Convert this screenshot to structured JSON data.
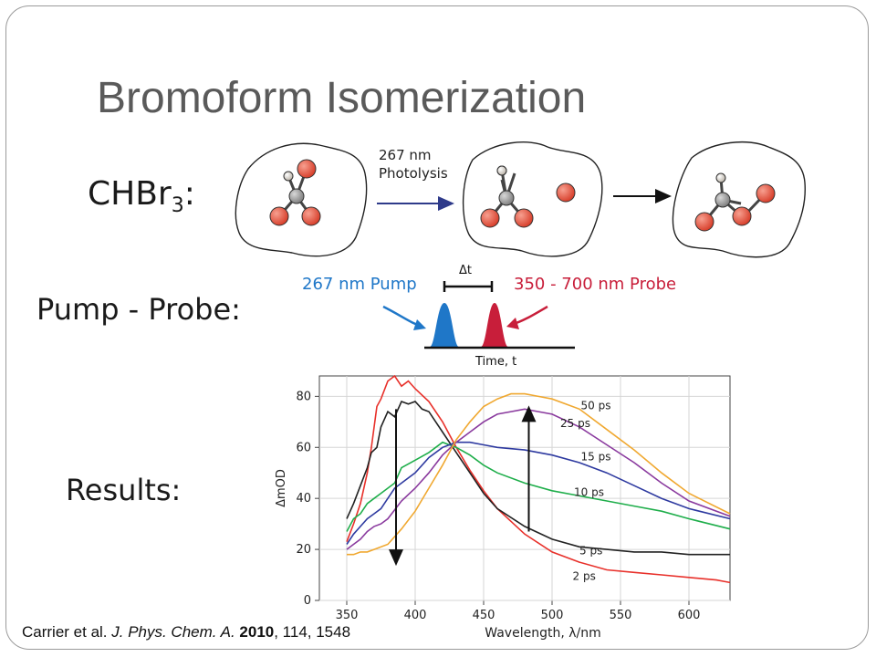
{
  "slide": {
    "title": "Bromoform Isomerization",
    "labels": {
      "chbr3_main": "CHBr",
      "chbr3_sub": "3",
      "chbr3_colon": ":",
      "pump_probe": "Pump - Probe:",
      "results": "Results:"
    },
    "photolysis": {
      "line1": "267 nm",
      "line2": "Photolysis"
    },
    "pump_probe": {
      "pump": "267 nm Pump",
      "probe": "350 - 700 nm Probe",
      "delta": "Δt",
      "axis": "Time, t"
    },
    "colors": {
      "bromine": "#e8503a",
      "carbon": "#9a9a9a",
      "hydrogen": "#d8d2c8",
      "pump": "#1f77c8",
      "probe": "#c81e3a",
      "arrow": "#2e3a8a"
    },
    "citation": {
      "authors": "Carrier et al. ",
      "journal": "J. Phys. Chem. A.",
      "year": "2010",
      "rest": ", 114, 1548"
    }
  },
  "chart_data": {
    "type": "line",
    "xlabel": "Wavelength, λ/nm",
    "ylabel": "ΔmOD",
    "xlim": [
      330,
      630
    ],
    "ylim": [
      0,
      88
    ],
    "xticks": [
      "350",
      "400",
      "450",
      "500",
      "550",
      "600"
    ],
    "yticks": [
      "0",
      "20",
      "40",
      "60",
      "80"
    ],
    "grid": true,
    "series": [
      {
        "name": "2 ps",
        "color": "#e8302a",
        "label_at": [
          515,
          8
        ],
        "x": [
          350,
          355,
          360,
          365,
          368,
          372,
          375,
          380,
          385,
          390,
          395,
          400,
          410,
          420,
          430,
          440,
          450,
          460,
          480,
          500,
          520,
          540,
          560,
          580,
          600,
          620,
          630
        ],
        "y": [
          23,
          30,
          38,
          50,
          60,
          76,
          79,
          86,
          88,
          84,
          86,
          83,
          78,
          70,
          60,
          51,
          43,
          36,
          26,
          19,
          15,
          12,
          11,
          10,
          9,
          8,
          7
        ]
      },
      {
        "name": "5 ps",
        "color": "#222222",
        "label_at": [
          520,
          18
        ],
        "x": [
          350,
          355,
          360,
          365,
          368,
          372,
          375,
          380,
          385,
          390,
          395,
          400,
          405,
          410,
          420,
          430,
          440,
          450,
          460,
          480,
          500,
          520,
          540,
          560,
          580,
          600,
          630
        ],
        "y": [
          32,
          38,
          45,
          52,
          58,
          60,
          68,
          74,
          72,
          78,
          77,
          78,
          75,
          74,
          66,
          58,
          50,
          42,
          36,
          29,
          24,
          21,
          20,
          19,
          19,
          18,
          18
        ]
      },
      {
        "name": "10 ps",
        "color": "#1fae4b",
        "label_at": [
          516,
          41
        ],
        "x": [
          350,
          355,
          360,
          365,
          370,
          375,
          380,
          385,
          390,
          400,
          410,
          420,
          430,
          440,
          450,
          460,
          480,
          500,
          520,
          540,
          560,
          580,
          600,
          630
        ],
        "y": [
          27,
          32,
          34,
          38,
          40,
          42,
          44,
          46,
          52,
          55,
          58,
          62,
          60,
          57,
          53,
          50,
          46,
          43,
          41,
          39,
          37,
          35,
          32,
          28
        ]
      },
      {
        "name": "15 ps",
        "color": "#2e3aa0",
        "label_at": [
          521,
          55
        ],
        "x": [
          350,
          355,
          360,
          365,
          370,
          375,
          380,
          385,
          390,
          400,
          410,
          420,
          430,
          440,
          450,
          460,
          480,
          500,
          520,
          540,
          560,
          580,
          600,
          630
        ],
        "y": [
          22,
          26,
          29,
          32,
          34,
          36,
          40,
          44,
          46,
          50,
          56,
          60,
          62,
          62,
          61,
          60,
          59,
          57,
          54,
          50,
          45,
          40,
          36,
          32
        ]
      },
      {
        "name": "25 ps",
        "color": "#8a3a9e",
        "label_at": [
          506,
          68
        ],
        "x": [
          350,
          355,
          360,
          365,
          370,
          375,
          380,
          390,
          400,
          410,
          420,
          430,
          440,
          450,
          460,
          470,
          480,
          490,
          500,
          520,
          540,
          560,
          580,
          600,
          630
        ],
        "y": [
          20,
          22,
          24,
          27,
          29,
          30,
          32,
          39,
          44,
          50,
          57,
          62,
          66,
          70,
          73,
          74,
          75,
          74,
          73,
          68,
          61,
          54,
          46,
          39,
          33
        ]
      },
      {
        "name": "50 ps",
        "color": "#f0a830",
        "label_at": [
          521,
          75
        ],
        "x": [
          350,
          355,
          360,
          365,
          370,
          380,
          390,
          400,
          410,
          420,
          430,
          440,
          450,
          460,
          470,
          480,
          490,
          500,
          520,
          540,
          560,
          580,
          600,
          630
        ],
        "y": [
          18,
          18,
          19,
          19,
          20,
          22,
          28,
          35,
          44,
          53,
          63,
          70,
          76,
          79,
          81,
          81,
          80,
          79,
          75,
          67,
          59,
          50,
          42,
          34
        ]
      }
    ],
    "arrows": [
      {
        "x": 386,
        "from": 75,
        "to": 15
      },
      {
        "x": 483,
        "from": 27,
        "to": 75
      }
    ]
  }
}
